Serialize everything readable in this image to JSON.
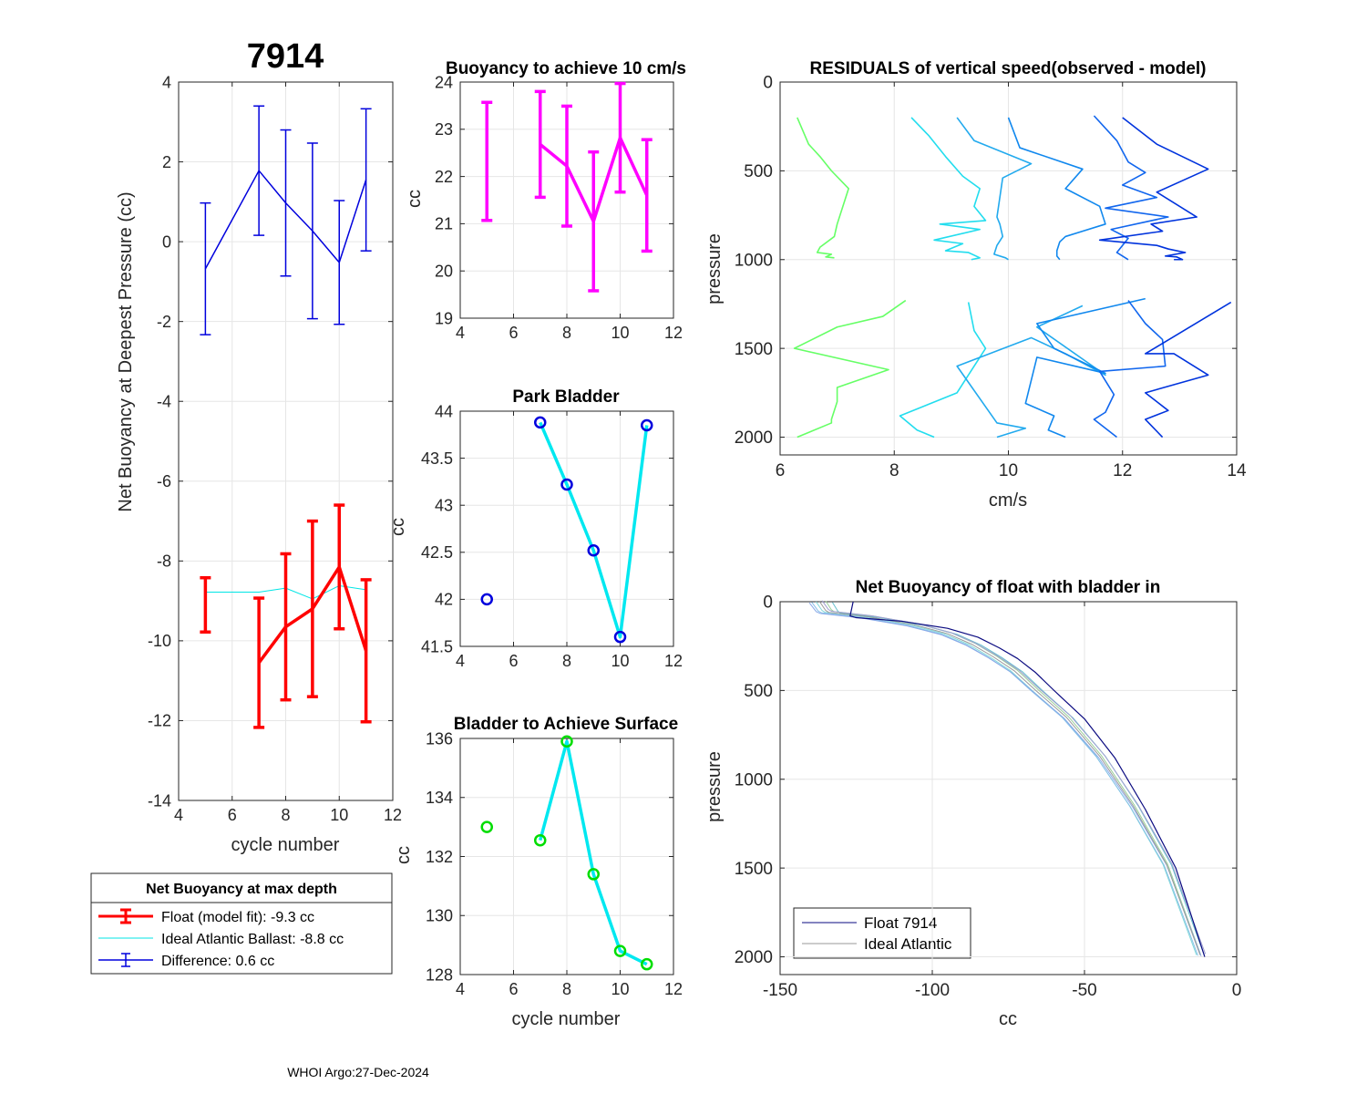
{
  "figure": {
    "float_id": "7914",
    "footer": "WHOI Argo:27-Dec-2024"
  },
  "legend": {
    "title": "Net Buoyancy at max depth",
    "float_label": "Float (model fit):  -9.3 cc",
    "ideal_label": "Ideal Atlantic Ballast:  -8.8 cc",
    "diff_label": "Difference:   0.6 cc"
  },
  "colors": {
    "float": "#ff0000",
    "ideal": "#00e5e5",
    "difference": "#0000dd",
    "buoyancy": "#ff00ff",
    "park_marker": "#0000dd",
    "surface_marker": "#00dd00",
    "cyan_line": "#00e8f0"
  },
  "chart_data": [
    {
      "id": "main",
      "type": "line",
      "title": "7914",
      "xlabel": "cycle number",
      "ylabel": "Net Buoyancy at Deepest Pressure (cc)",
      "xlim": [
        4,
        12
      ],
      "ylim": [
        -14,
        4
      ],
      "xticks": [
        4,
        6,
        8,
        10,
        12
      ],
      "yticks": [
        -14,
        -12,
        -10,
        -8,
        -6,
        -4,
        -2,
        0,
        2,
        4
      ],
      "grid": true,
      "series": [
        {
          "name": "Float (model fit)",
          "x": [
            5,
            7,
            8,
            9,
            10,
            11
          ],
          "y": [
            -9.1,
            -10.55,
            -9.65,
            -9.2,
            -8.15,
            -10.25
          ],
          "err": [
            0.68,
            1.62,
            1.83,
            2.2,
            1.55,
            1.78
          ],
          "connect_from_index": 1
        },
        {
          "name": "Ideal Atlantic Ballast",
          "x": [
            5,
            7,
            8,
            9,
            10,
            11
          ],
          "y": [
            -8.78,
            -8.78,
            -8.68,
            -8.95,
            -8.62,
            -8.72
          ]
        },
        {
          "name": "Difference",
          "x": [
            5,
            7,
            8,
            9,
            10,
            11
          ],
          "y": [
            -0.68,
            1.78,
            0.97,
            0.27,
            -0.52,
            1.55
          ],
          "err": [
            1.65,
            1.62,
            1.83,
            2.2,
            1.55,
            1.78
          ]
        }
      ]
    },
    {
      "id": "buoyancy",
      "type": "line",
      "title": "Buoyancy to achieve 10 cm/s",
      "xlabel": "",
      "ylabel": "cc",
      "xlim": [
        4,
        12
      ],
      "ylim": [
        19,
        24
      ],
      "xticks": [
        4,
        6,
        8,
        10,
        12
      ],
      "yticks": [
        19,
        20,
        21,
        22,
        23,
        24
      ],
      "grid": true,
      "series": [
        {
          "name": "buoyancy",
          "x": [
            5,
            7,
            8,
            9,
            10,
            11
          ],
          "y": [
            22.32,
            22.68,
            22.22,
            21.05,
            22.82,
            21.6
          ],
          "err": [
            1.25,
            1.12,
            1.27,
            1.47,
            1.15,
            1.18
          ],
          "connect_from_index": 1
        }
      ]
    },
    {
      "id": "park",
      "type": "line",
      "title": "Park Bladder",
      "xlabel": "",
      "ylabel": "cc",
      "xlim": [
        4,
        12
      ],
      "ylim": [
        41.5,
        44
      ],
      "xticks": [
        4,
        6,
        8,
        10,
        12
      ],
      "yticks": [
        41.5,
        42,
        42.5,
        43,
        43.5,
        44
      ],
      "ytick_labels": [
        "41.5",
        "42",
        "42.5",
        "43",
        "43.5",
        "44"
      ],
      "grid": true,
      "series": [
        {
          "name": "park bladder",
          "x": [
            5,
            7,
            8,
            9,
            10,
            11
          ],
          "y": [
            42.0,
            43.88,
            43.22,
            42.52,
            41.6,
            43.85
          ],
          "connect_from_index": 1
        }
      ]
    },
    {
      "id": "surface",
      "type": "line",
      "title": "Bladder to Achieve Surface",
      "xlabel": "cycle number",
      "ylabel": "cc",
      "xlim": [
        4,
        12
      ],
      "ylim": [
        128,
        136
      ],
      "xticks": [
        4,
        6,
        8,
        10,
        12
      ],
      "yticks": [
        128,
        130,
        132,
        134,
        136
      ],
      "grid": true,
      "series": [
        {
          "name": "surface bladder",
          "x": [
            5,
            7,
            8,
            9,
            10,
            11
          ],
          "y": [
            133.0,
            132.55,
            135.9,
            131.4,
            128.8,
            128.35
          ],
          "connect_from_index": 1
        }
      ]
    },
    {
      "id": "residuals",
      "type": "line",
      "title": "RESIDUALS of vertical speed(observed - model)",
      "xlabel": "cm/s",
      "ylabel": "pressure",
      "xlim": [
        6,
        14
      ],
      "ylim": [
        0,
        2100
      ],
      "y_reversed": true,
      "xticks": [
        6,
        8,
        10,
        12,
        14
      ],
      "yticks": [
        0,
        500,
        1000,
        1500,
        2000
      ],
      "grid": true,
      "series": [
        {
          "name": "c5",
          "color": "#66ff66",
          "upper": {
            "x": [
              6.3,
              6.5,
              6.7,
              6.9,
              7.2,
              7.1,
              7.0,
              6.95,
              6.7,
              6.65,
              6.9,
              6.8,
              6.95
            ],
            "y": [
              200,
              350,
              420,
              500,
              600,
              700,
              800,
              870,
              930,
              960,
              970,
              985,
              990
            ]
          },
          "lower": {
            "x": [
              8.2,
              7.8,
              7.0,
              6.25,
              7.9,
              7.0,
              7.0,
              6.9,
              6.9,
              6.3
            ],
            "y": [
              1230,
              1320,
              1380,
              1500,
              1620,
              1720,
              1800,
              1900,
              1920,
              2000
            ]
          }
        },
        {
          "name": "c7",
          "color": "#22ddee",
          "upper": {
            "x": [
              8.3,
              8.6,
              8.9,
              9.2,
              9.5,
              9.4,
              9.6,
              8.8,
              9.5,
              8.7,
              9.2,
              8.9,
              9.3,
              9.5,
              9.35
            ],
            "y": [
              200,
              300,
              420,
              530,
              600,
              700,
              780,
              800,
              830,
              890,
              910,
              950,
              960,
              990,
              1000
            ]
          },
          "lower": {
            "x": [
              9.3,
              9.4,
              9.6,
              9.3,
              9.1,
              8.1,
              8.4,
              8.7
            ],
            "y": [
              1240,
              1400,
              1500,
              1650,
              1750,
              1880,
              1960,
              2000
            ]
          }
        },
        {
          "name": "c8",
          "color": "#22aaee",
          "upper": {
            "x": [
              9.1,
              9.4,
              10.4,
              9.9,
              9.85,
              9.8,
              9.85,
              9.9,
              9.8,
              9.75,
              9.95,
              10.0
            ],
            "y": [
              200,
              330,
              460,
              540,
              650,
              760,
              800,
              870,
              920,
              970,
              990,
              1000
            ]
          },
          "lower": {
            "x": [
              11.3,
              10.5,
              11.7,
              11.0,
              10.4,
              9.1,
              9.8,
              10.3,
              9.8
            ],
            "y": [
              1260,
              1380,
              1650,
              1530,
              1440,
              1600,
              1920,
              1950,
              2000
            ]
          }
        },
        {
          "name": "c9",
          "color": "#1188ee",
          "upper": {
            "x": [
              10.0,
              10.2,
              11.3,
              11.0,
              11.6,
              11.7,
              11.0,
              10.9,
              10.85,
              10.85,
              10.9
            ],
            "y": [
              200,
              370,
              490,
              600,
              700,
              800,
              870,
              900,
              950,
              980,
              1000
            ]
          },
          "lower": {
            "x": [
              12.4,
              10.5,
              10.8,
              11.7,
              10.5,
              10.3,
              10.8,
              10.7,
              11.0
            ],
            "y": [
              1220,
              1360,
              1500,
              1640,
              1550,
              1810,
              1880,
              1960,
              2000
            ]
          }
        },
        {
          "name": "c10",
          "color": "#1166ee",
          "upper": {
            "x": [
              11.5,
              11.9,
              12.1,
              12.4,
              12.0,
              12.6,
              11.7,
              12.8,
              11.8,
              12.1,
              11.9,
              12.1
            ],
            "y": [
              190,
              330,
              450,
              510,
              580,
              650,
              710,
              760,
              830,
              880,
              960,
              1000
            ]
          },
          "lower": {
            "x": [
              12.1,
              12.4,
              12.7,
              12.75,
              11.6,
              11.85,
              11.7,
              11.5,
              11.9
            ],
            "y": [
              1230,
              1360,
              1450,
              1600,
              1630,
              1760,
              1860,
              1900,
              2000
            ]
          }
        },
        {
          "name": "c11",
          "color": "#0033dd",
          "upper": {
            "x": [
              12.0,
              12.6,
              13.5,
              12.6,
              13.3,
              12.5,
              12.7,
              11.6,
              12.6,
              12.8,
              13.1,
              12.75,
              12.95,
              13.05,
              12.9
            ],
            "y": [
              200,
              350,
              490,
              620,
              760,
              800,
              840,
              890,
              920,
              940,
              960,
              980,
              985,
              1000,
              1000
            ]
          },
          "lower": {
            "x": [
              13.9,
              12.4,
              12.9,
              13.5,
              12.4,
              12.8,
              12.4,
              12.7
            ],
            "y": [
              1240,
              1530,
              1530,
              1650,
              1750,
              1850,
              1900,
              2000
            ]
          }
        }
      ]
    },
    {
      "id": "netbuoy",
      "type": "line",
      "title": "Net Buoyancy of float with bladder in",
      "xlabel": "cc",
      "ylabel": "pressure",
      "xlim": [
        -150,
        0
      ],
      "ylim": [
        0,
        2100
      ],
      "y_reversed": true,
      "xticks": [
        -150,
        -100,
        -50,
        0
      ],
      "yticks": [
        0,
        500,
        1000,
        1500,
        2000
      ],
      "grid": true,
      "legend_entries": [
        "Float 7914",
        "Ideal Atlantic"
      ],
      "series": [
        {
          "name": "Float 7914",
          "color": "#0a0a80",
          "x": [
            -126,
            -127,
            -125,
            -110,
            -95,
            -85,
            -78,
            -72,
            -66,
            -60,
            -50,
            -40,
            -30,
            -20,
            -10.5
          ],
          "y": [
            0,
            80,
            90,
            110,
            150,
            200,
            260,
            320,
            400,
            500,
            660,
            880,
            1170,
            1500,
            2000
          ]
        },
        {
          "name": "Ideal Atlantic",
          "color": "#999999",
          "x": [
            -137,
            -135,
            -134,
            -121,
            -106,
            -95,
            -87,
            -80,
            -73,
            -66,
            -56,
            -45,
            -34,
            -23,
            -12
          ],
          "y": [
            0,
            50,
            60,
            85,
            130,
            180,
            240,
            310,
            390,
            500,
            650,
            870,
            1150,
            1480,
            1990
          ]
        }
      ]
    }
  ]
}
